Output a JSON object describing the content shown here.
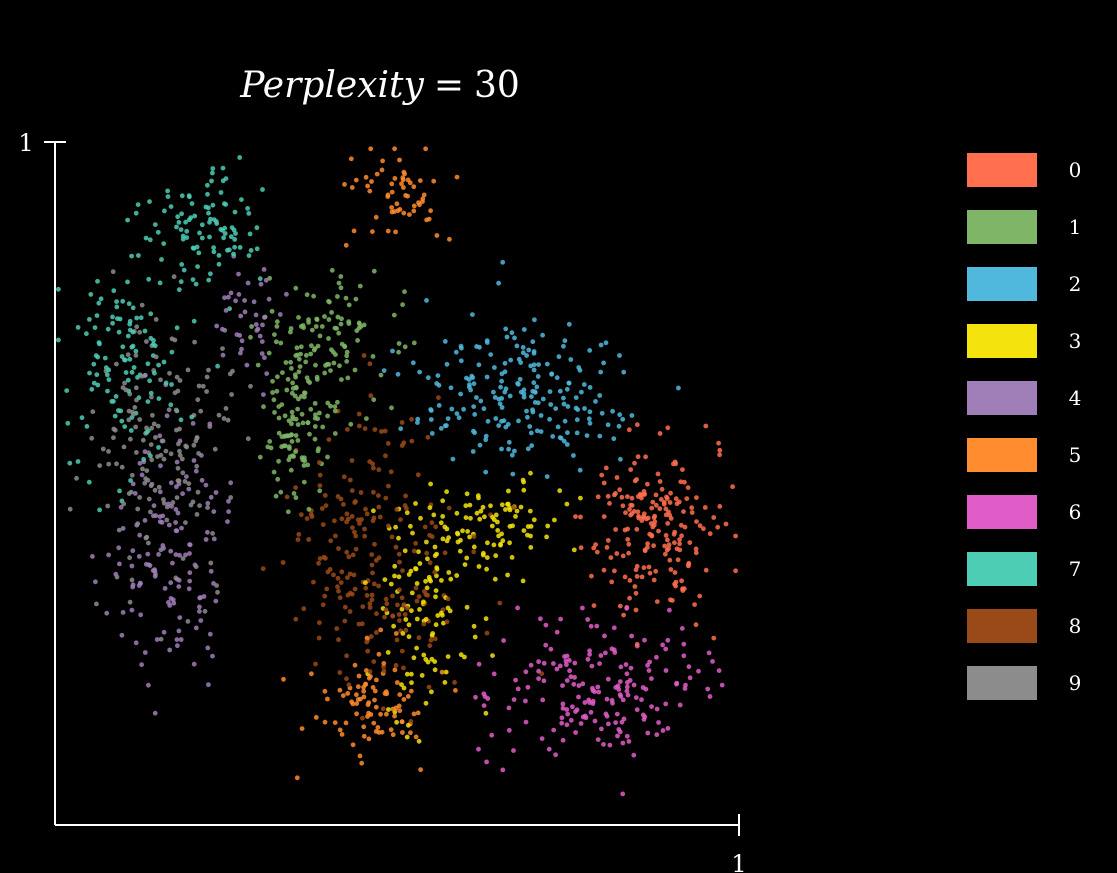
{
  "chart_data": {
    "type": "scatter",
    "title": "Perplexity = 30",
    "title_parts": {
      "label": "Perplexity",
      "operator": "=",
      "value": "30"
    },
    "xlabel": "",
    "ylabel": "",
    "xlim": [
      0,
      1
    ],
    "ylim": [
      0,
      1
    ],
    "x_ticks": [
      {
        "value": 1,
        "label": "1"
      }
    ],
    "y_ticks": [
      {
        "value": 1,
        "label": "1"
      }
    ],
    "grid": false,
    "legend_position": "right",
    "point_seed": 30,
    "series": [
      {
        "name": "0",
        "color": "#FF6F4E",
        "clusters": [
          {
            "cx": 0.88,
            "cy": 0.44,
            "sx": 0.06,
            "sy": 0.07,
            "n": 200
          }
        ]
      },
      {
        "name": "1",
        "color": "#7FB566",
        "clusters": [
          {
            "cx": 0.4,
            "cy": 0.69,
            "sx": 0.06,
            "sy": 0.06,
            "n": 120
          },
          {
            "cx": 0.35,
            "cy": 0.59,
            "sx": 0.03,
            "sy": 0.06,
            "n": 100
          }
        ]
      },
      {
        "name": "2",
        "color": "#4FB8DC",
        "clusters": [
          {
            "cx": 0.68,
            "cy": 0.63,
            "sx": 0.09,
            "sy": 0.06,
            "n": 210
          }
        ]
      },
      {
        "name": "3",
        "color": "#F4E30C",
        "clusters": [
          {
            "cx": 0.54,
            "cy": 0.34,
            "sx": 0.05,
            "sy": 0.1,
            "n": 120
          },
          {
            "cx": 0.65,
            "cy": 0.44,
            "sx": 0.05,
            "sy": 0.04,
            "n": 80
          }
        ]
      },
      {
        "name": "4",
        "color": "#A07EB8",
        "clusters": [
          {
            "cx": 0.17,
            "cy": 0.42,
            "sx": 0.05,
            "sy": 0.11,
            "n": 140
          },
          {
            "cx": 0.28,
            "cy": 0.73,
            "sx": 0.03,
            "sy": 0.05,
            "n": 40
          }
        ]
      },
      {
        "name": "5",
        "color": "#FF8C2E",
        "clusters": [
          {
            "cx": 0.46,
            "cy": 0.18,
            "sx": 0.05,
            "sy": 0.05,
            "n": 90
          },
          {
            "cx": 0.5,
            "cy": 0.92,
            "sx": 0.04,
            "sy": 0.04,
            "n": 60
          }
        ]
      },
      {
        "name": "6",
        "color": "#E05DC7",
        "clusters": [
          {
            "cx": 0.78,
            "cy": 0.2,
            "sx": 0.1,
            "sy": 0.07,
            "n": 190
          }
        ]
      },
      {
        "name": "7",
        "color": "#4ECDB5",
        "clusters": [
          {
            "cx": 0.22,
            "cy": 0.87,
            "sx": 0.05,
            "sy": 0.05,
            "n": 100
          },
          {
            "cx": 0.1,
            "cy": 0.68,
            "sx": 0.05,
            "sy": 0.09,
            "n": 120
          }
        ]
      },
      {
        "name": "8",
        "color": "#9A4A18",
        "clusters": [
          {
            "cx": 0.46,
            "cy": 0.4,
            "sx": 0.07,
            "sy": 0.12,
            "n": 230
          }
        ]
      },
      {
        "name": "9",
        "color": "#8C8C8C",
        "clusters": [
          {
            "cx": 0.16,
            "cy": 0.55,
            "sx": 0.06,
            "sy": 0.12,
            "n": 170
          }
        ]
      }
    ]
  }
}
